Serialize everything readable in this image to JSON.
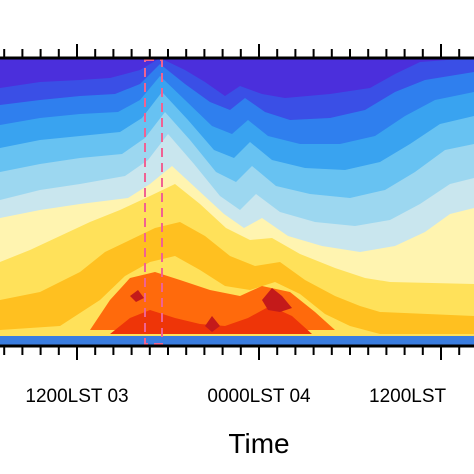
{
  "chart_data": {
    "type": "heatmap",
    "title": "",
    "xlabel": "Time",
    "ylabel": "",
    "x_tick_labels": [
      "1200LST 03",
      "0000LST 04",
      "1200LST"
    ],
    "highlight_box": {
      "label": "",
      "color": "#f06292"
    },
    "colormap": [
      "#4b2fdc",
      "#3a4fe6",
      "#2f7fee",
      "#39a3f0",
      "#67c2f2",
      "#9cd7f0",
      "#c9e6ee",
      "#fff4b0",
      "#ffe15a",
      "#ffc020",
      "#ff9a12",
      "#ff6a0c",
      "#ee3508",
      "#c41a1a"
    ],
    "surface_band_color": "#3a7de0",
    "grid": false
  }
}
